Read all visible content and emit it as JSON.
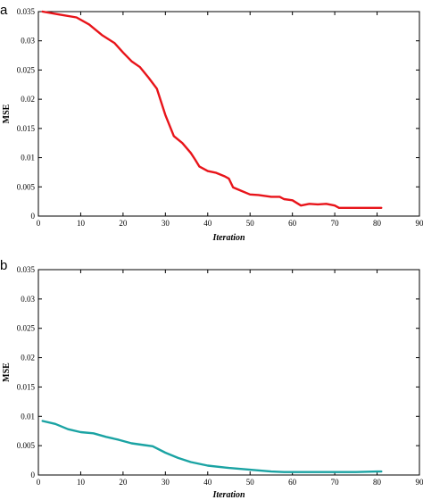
{
  "chart_data": [
    {
      "panel_label": "a",
      "type": "line",
      "xlabel": "Iteration",
      "ylabel": "MSE",
      "xlim": [
        0,
        90
      ],
      "ylim": [
        0,
        0.035
      ],
      "x_ticks": [
        "0",
        "10",
        "20",
        "30",
        "40",
        "50",
        "60",
        "70",
        "80",
        "90"
      ],
      "y_ticks": [
        "0",
        "0.005",
        "0.01",
        "0.015",
        "0.02",
        "0.025",
        "0.03",
        "0.035"
      ],
      "grid": false,
      "series": [
        {
          "color": "#e8141a",
          "x": [
            1,
            5,
            9,
            12,
            15,
            18,
            20,
            22,
            24,
            26,
            28,
            30,
            32,
            34,
            36,
            37,
            38,
            40,
            42,
            44,
            45,
            46,
            48,
            50,
            52,
            55,
            57,
            58,
            60,
            62,
            64,
            66,
            68,
            70,
            71,
            75,
            80,
            81
          ],
          "values": [
            0.035,
            0.0345,
            0.034,
            0.0328,
            0.031,
            0.0296,
            0.028,
            0.0265,
            0.0255,
            0.0237,
            0.0218,
            0.0173,
            0.0137,
            0.0125,
            0.0108,
            0.0097,
            0.0085,
            0.0077,
            0.0074,
            0.0068,
            0.0064,
            0.0049,
            0.0043,
            0.0037,
            0.0036,
            0.0033,
            0.0033,
            0.0029,
            0.0027,
            0.0018,
            0.0021,
            0.002,
            0.0021,
            0.0018,
            0.0014,
            0.0014,
            0.0014,
            0.0014
          ]
        }
      ]
    },
    {
      "panel_label": "b",
      "type": "line",
      "xlabel": "Iteration",
      "ylabel": "MSE",
      "xlim": [
        0,
        90
      ],
      "ylim": [
        0,
        0.035
      ],
      "x_ticks": [
        "0",
        "10",
        "20",
        "30",
        "40",
        "50",
        "60",
        "70",
        "80",
        "90"
      ],
      "y_ticks": [
        "0",
        "0.005",
        "0.01",
        "0.015",
        "0.02",
        "0.025",
        "0.03",
        "0.035"
      ],
      "grid": false,
      "series": [
        {
          "color": "#1aa3a3",
          "x": [
            1,
            4,
            7,
            10,
            13,
            16,
            19,
            22,
            25,
            27,
            30,
            33,
            36,
            40,
            45,
            50,
            55,
            58,
            62,
            66,
            70,
            75,
            80,
            81
          ],
          "values": [
            0.0092,
            0.0087,
            0.0078,
            0.0073,
            0.0071,
            0.0065,
            0.006,
            0.0054,
            0.0051,
            0.0049,
            0.0038,
            0.0029,
            0.0022,
            0.0016,
            0.0012,
            0.0009,
            0.0006,
            0.0005,
            0.0005,
            0.0005,
            0.0005,
            0.0005,
            0.0006,
            0.0006
          ]
        }
      ]
    }
  ]
}
